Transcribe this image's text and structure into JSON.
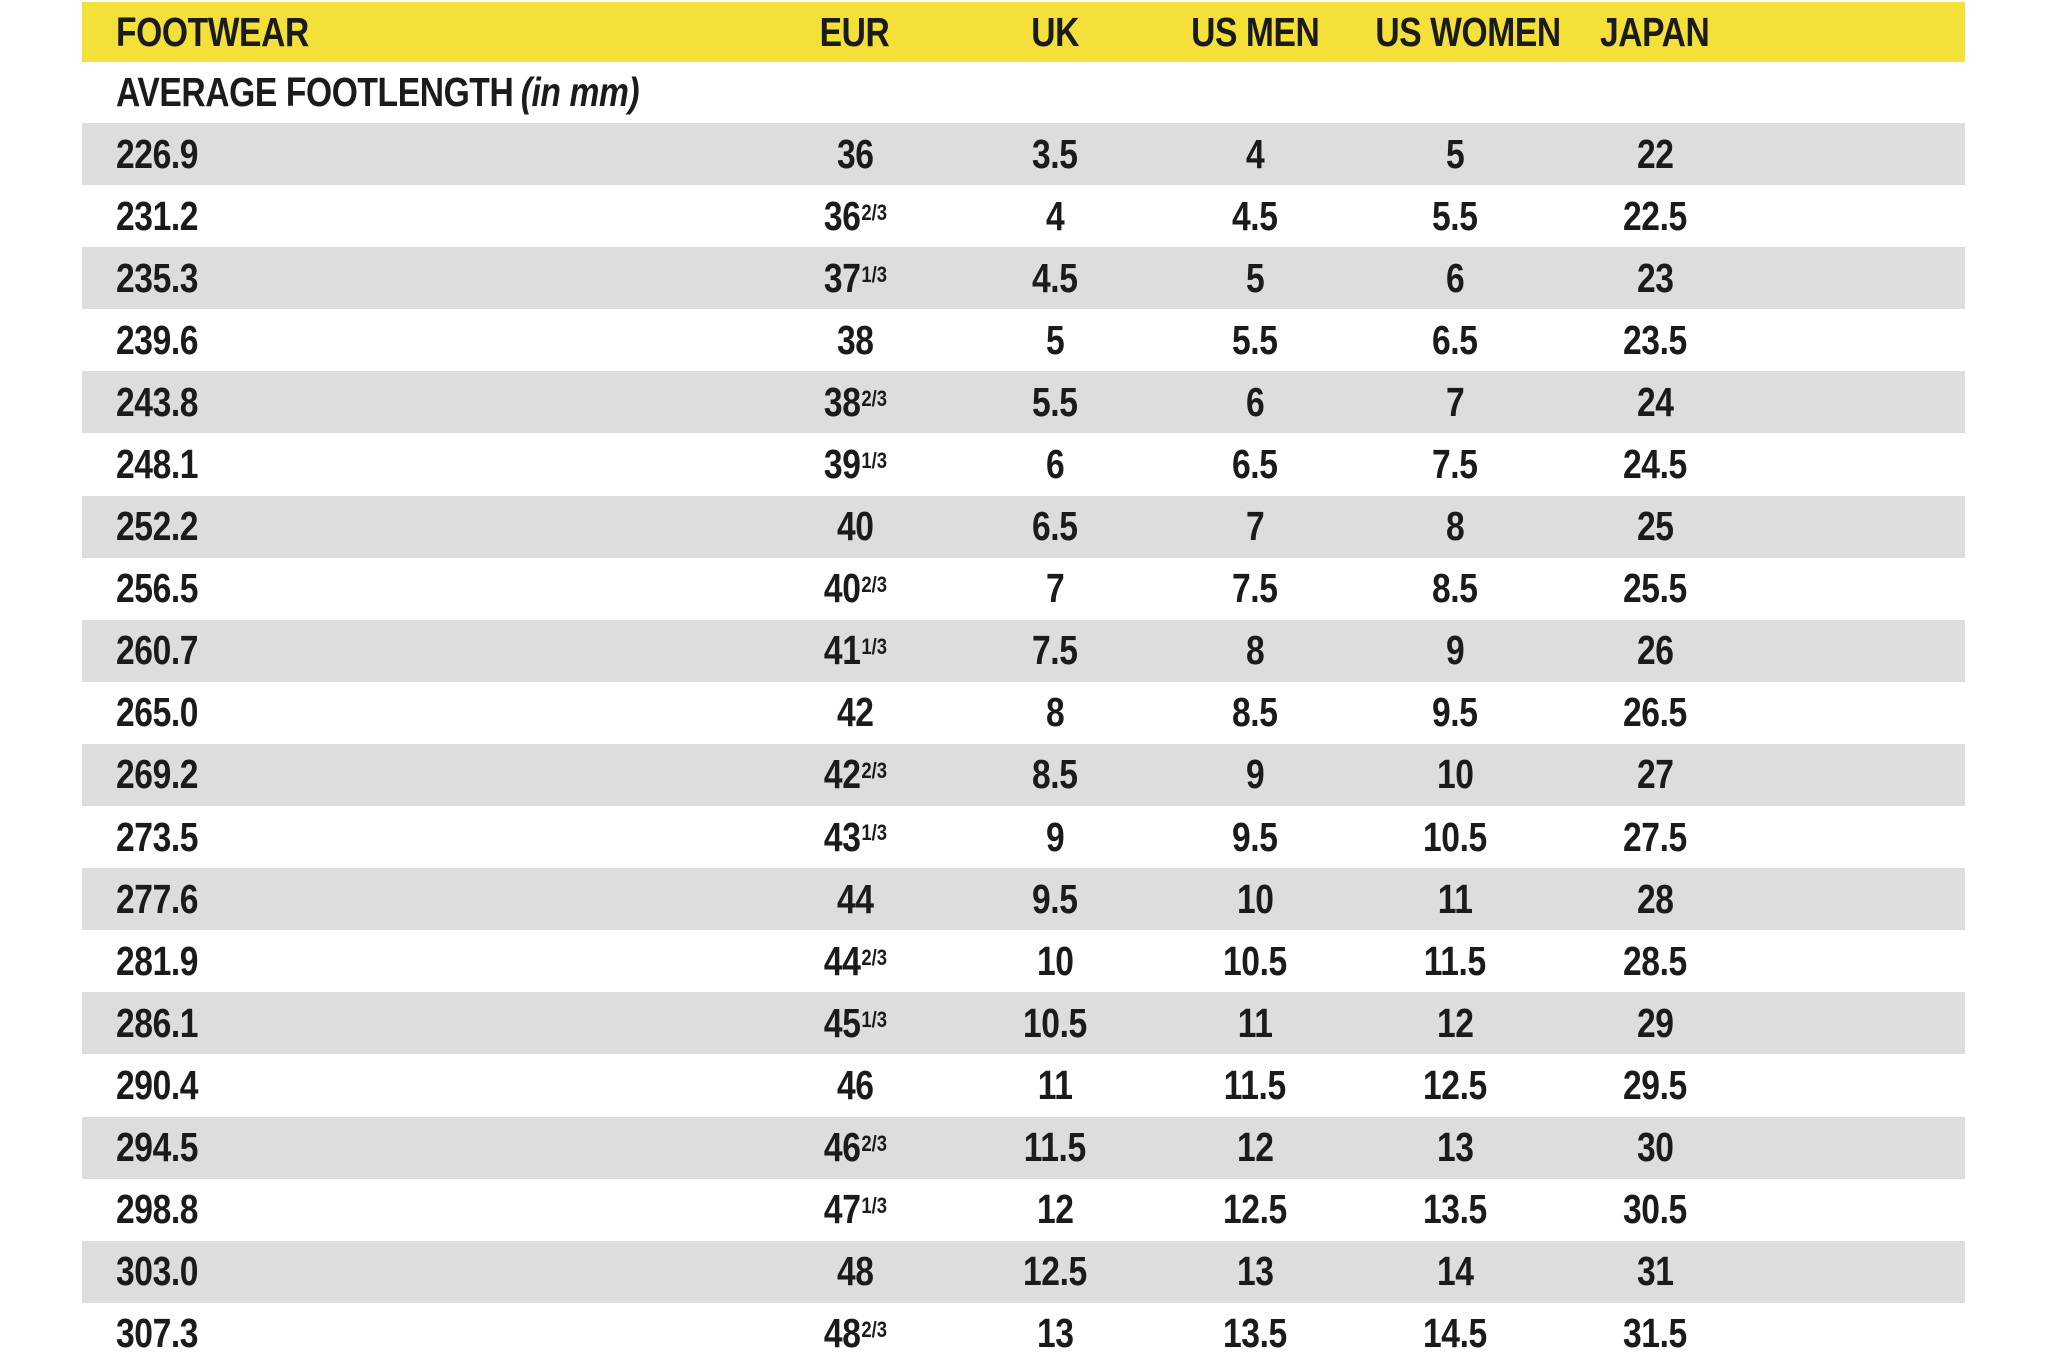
{
  "chart_data": {
    "type": "table",
    "title": "FOOTWEAR",
    "subtitle_label": "AVERAGE FOOTLENGTH",
    "subtitle_unit": "(in mm)",
    "columns": [
      "FOOTWEAR",
      "EUR",
      "UK",
      "US MEN",
      "US WOMEN",
      "JAPAN"
    ],
    "first_column_meaning": "Average footlength in mm",
    "rows": [
      [
        "226.9",
        "36",
        "3.5",
        "4",
        "5",
        "22"
      ],
      [
        "231.2",
        "36 2/3",
        "4",
        "4.5",
        "5.5",
        "22.5"
      ],
      [
        "235.3",
        "37 1/3",
        "4.5",
        "5",
        "6",
        "23"
      ],
      [
        "239.6",
        "38",
        "5",
        "5.5",
        "6.5",
        "23.5"
      ],
      [
        "243.8",
        "38 2/3",
        "5.5",
        "6",
        "7",
        "24"
      ],
      [
        "248.1",
        "39 1/3",
        "6",
        "6.5",
        "7.5",
        "24.5"
      ],
      [
        "252.2",
        "40",
        "6.5",
        "7",
        "8",
        "25"
      ],
      [
        "256.5",
        "40 2/3",
        "7",
        "7.5",
        "8.5",
        "25.5"
      ],
      [
        "260.7",
        "41 1/3",
        "7.5",
        "8",
        "9",
        "26"
      ],
      [
        "265.0",
        "42",
        "8",
        "8.5",
        "9.5",
        "26.5"
      ],
      [
        "269.2",
        "42 2/3",
        "8.5",
        "9",
        "10",
        "27"
      ],
      [
        "273.5",
        "43 1/3",
        "9",
        "9.5",
        "10.5",
        "27.5"
      ],
      [
        "277.6",
        "44",
        "9.5",
        "10",
        "11",
        "28"
      ],
      [
        "281.9",
        "44 2/3",
        "10",
        "10.5",
        "11.5",
        "28.5"
      ],
      [
        "286.1",
        "45 1/3",
        "10.5",
        "11",
        "12",
        "29"
      ],
      [
        "290.4",
        "46",
        "11",
        "11.5",
        "12.5",
        "29.5"
      ],
      [
        "294.5",
        "46 2/3",
        "11.5",
        "12",
        "13",
        "30"
      ],
      [
        "298.8",
        "47 1/3",
        "12",
        "12.5",
        "13.5",
        "30.5"
      ],
      [
        "303.0",
        "48",
        "12.5",
        "13",
        "14",
        "31"
      ],
      [
        "307.3",
        "48 2/3",
        "13",
        "13.5",
        "14.5",
        "31.5"
      ]
    ],
    "layout_hints": {
      "header_style": "yellow band, black bold condensed caps",
      "zebra_striping": "odd data rows gray, even rows white",
      "first_column_align": "left",
      "other_columns_align": "center"
    }
  },
  "colors": {
    "header_bg": "#F3E13A",
    "row_alt_bg": "#DCDDDF",
    "row_bg": "#FFFFFF",
    "text": "#1B1B1B"
  }
}
